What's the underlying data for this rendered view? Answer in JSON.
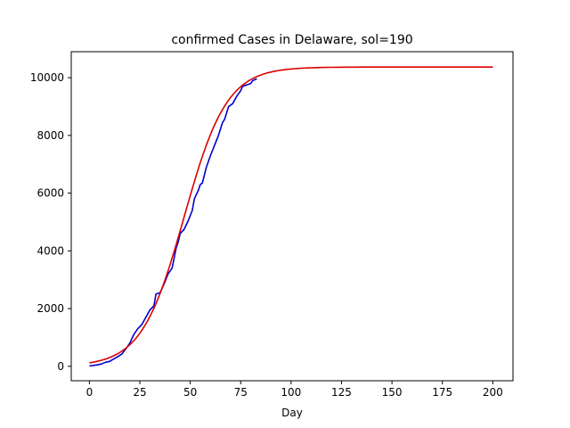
{
  "chart_data": {
    "type": "line",
    "title": "confirmed Cases in Delaware, sol=190",
    "xlabel": "Day",
    "ylabel": "",
    "xlim": [
      -9,
      210
    ],
    "ylim": [
      -500,
      10900
    ],
    "x_ticks": [
      0,
      25,
      50,
      75,
      100,
      125,
      150,
      175,
      200
    ],
    "y_ticks": [
      0,
      2000,
      4000,
      6000,
      8000,
      10000
    ],
    "grid": false,
    "legend": "none",
    "series": [
      {
        "color": "#0000cc",
        "kind": "observed",
        "points": [
          [
            0,
            10
          ],
          [
            2,
            30
          ],
          [
            4,
            50
          ],
          [
            6,
            80
          ],
          [
            8,
            140
          ],
          [
            10,
            170
          ],
          [
            12,
            250
          ],
          [
            14,
            330
          ],
          [
            16,
            420
          ],
          [
            18,
            600
          ],
          [
            20,
            800
          ],
          [
            22,
            1100
          ],
          [
            24,
            1300
          ],
          [
            26,
            1450
          ],
          [
            28,
            1700
          ],
          [
            30,
            1950
          ],
          [
            32,
            2100
          ],
          [
            33,
            2500
          ],
          [
            35,
            2550
          ],
          [
            37,
            2850
          ],
          [
            39,
            3200
          ],
          [
            41,
            3400
          ],
          [
            42,
            3750
          ],
          [
            43,
            4100
          ],
          [
            44,
            4300
          ],
          [
            45,
            4600
          ],
          [
            47,
            4750
          ],
          [
            49,
            5050
          ],
          [
            51,
            5400
          ],
          [
            52,
            5800
          ],
          [
            54,
            6100
          ],
          [
            55,
            6300
          ],
          [
            56,
            6350
          ],
          [
            58,
            6900
          ],
          [
            60,
            7300
          ],
          [
            62,
            7650
          ],
          [
            64,
            8000
          ],
          [
            66,
            8450
          ],
          [
            67,
            8550
          ],
          [
            69,
            9000
          ],
          [
            71,
            9100
          ],
          [
            73,
            9350
          ],
          [
            75,
            9550
          ],
          [
            76,
            9700
          ],
          [
            78,
            9750
          ],
          [
            80,
            9800
          ],
          [
            81,
            9900
          ],
          [
            83,
            9960
          ]
        ]
      },
      {
        "color": "#dd0000",
        "kind": "fit",
        "model": "logistic",
        "K": 10370,
        "r": 0.0947,
        "t0": 47,
        "x_range": [
          0,
          200
        ]
      }
    ]
  }
}
